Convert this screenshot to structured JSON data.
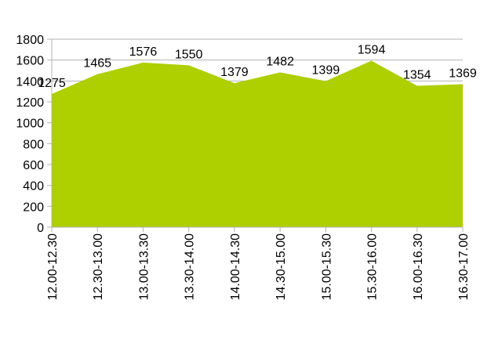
{
  "chart_data": {
    "type": "area",
    "title": "",
    "xlabel": "",
    "ylabel": "",
    "categories": [
      "12.00-12.30",
      "12.30-13.00",
      "13.00-13.30",
      "13.30-14.00",
      "14.00-14.30",
      "14.30-15.00",
      "15.00-15.30",
      "15.30-16.00",
      "16.00-16.30",
      "16.30-17.00"
    ],
    "values": [
      1275,
      1465,
      1576,
      1550,
      1379,
      1482,
      1399,
      1594,
      1354,
      1369
    ],
    "ylim": [
      0,
      1800
    ],
    "yticks": [
      0,
      200,
      400,
      600,
      800,
      1000,
      1200,
      1400,
      1600,
      1800
    ],
    "grid": true,
    "legend": "none",
    "data_labels": true,
    "fill_color": "#aecf00",
    "grid_color": "#b3b3b3"
  }
}
